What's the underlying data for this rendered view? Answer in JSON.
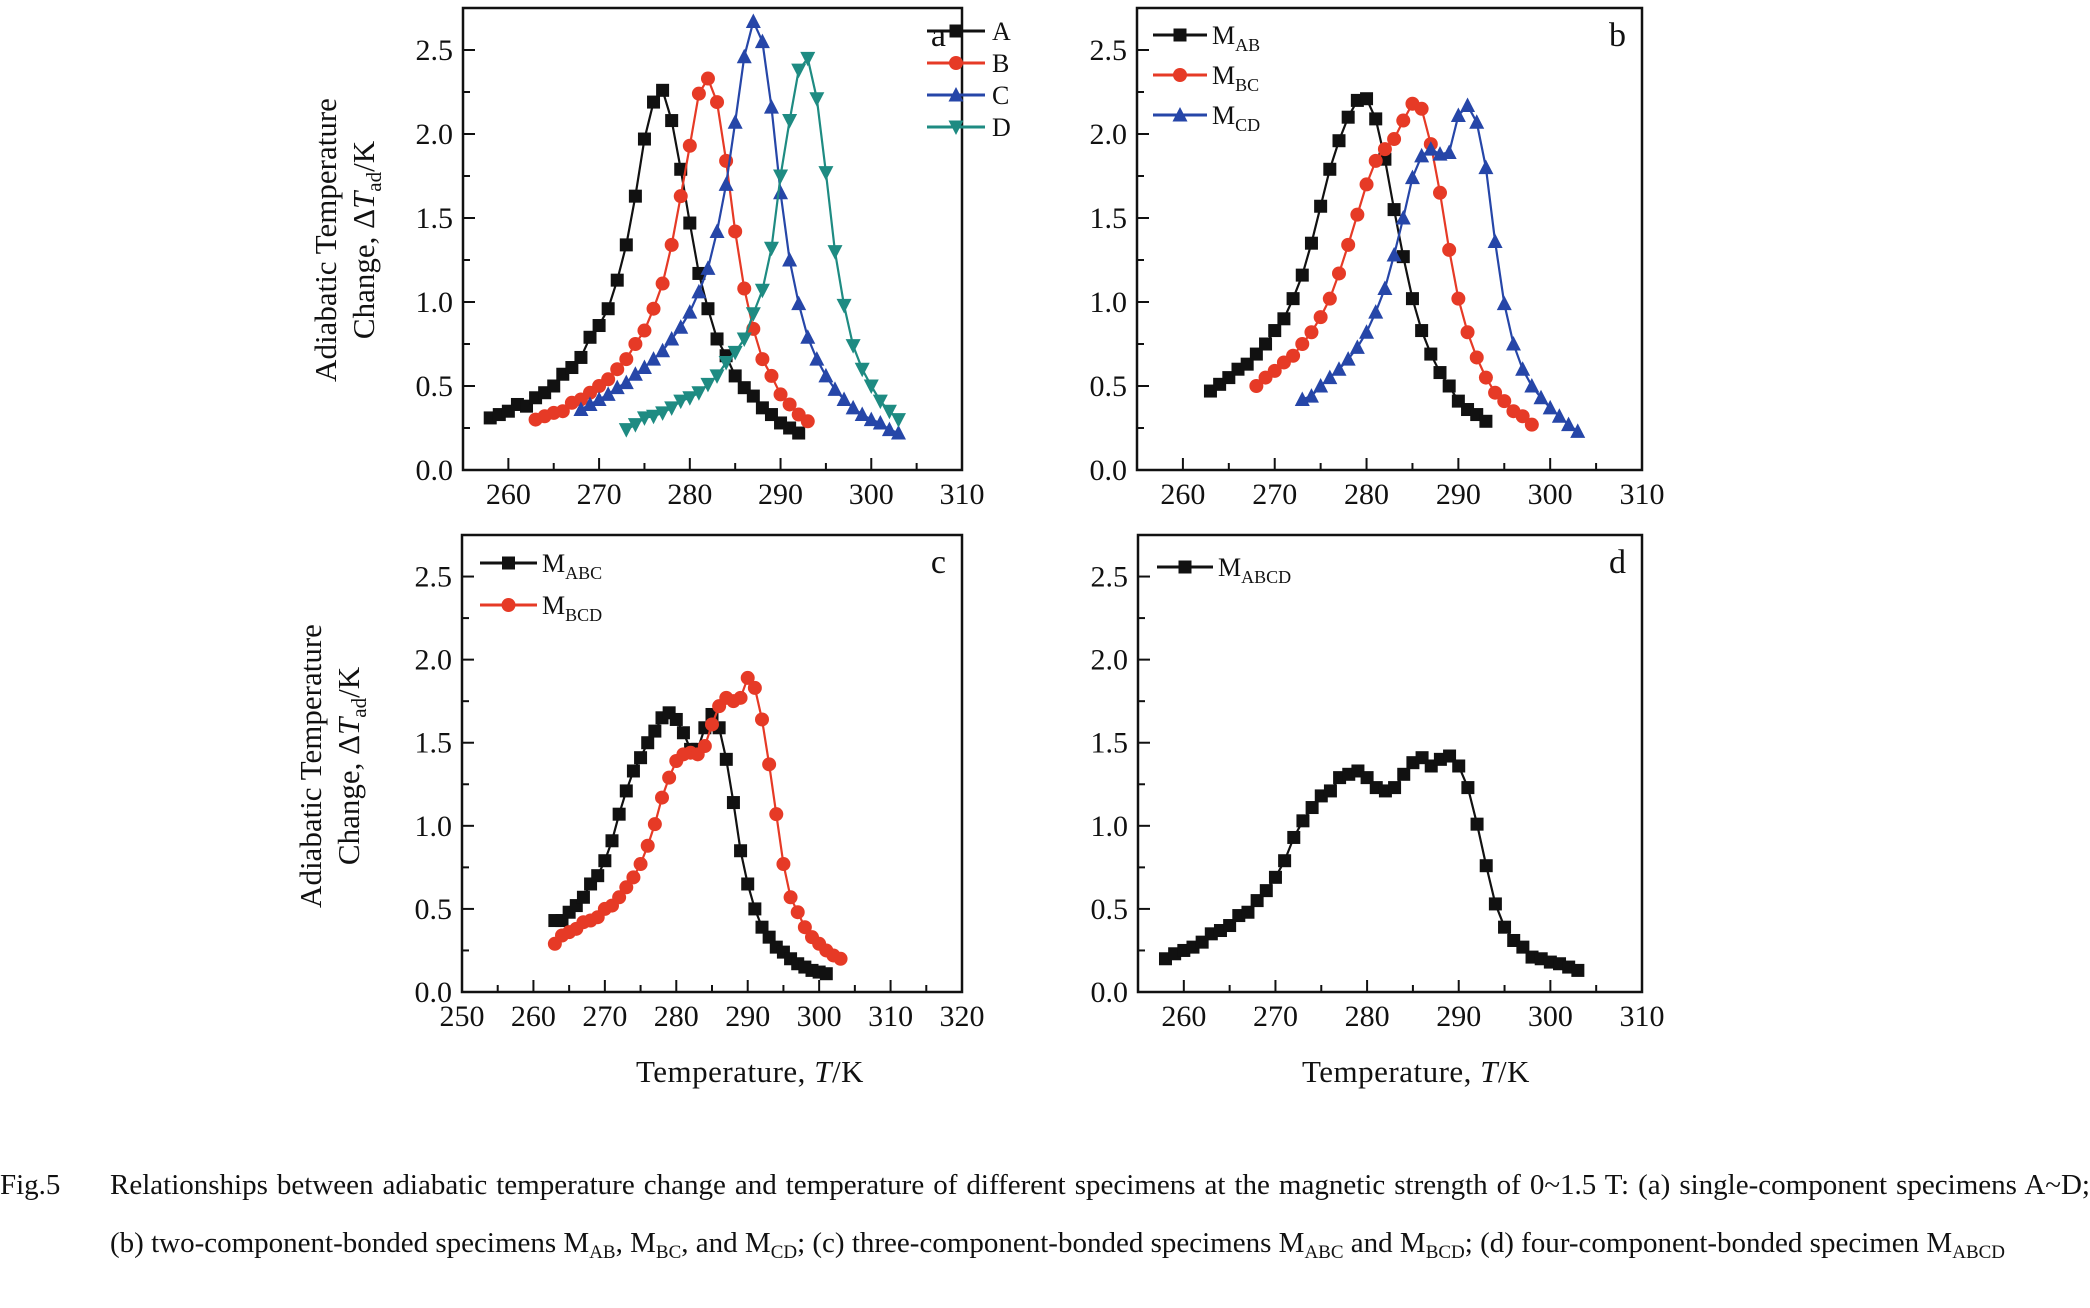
{
  "axis_titles": {
    "y_line1": "Adiabatic Temperature",
    "y_line2_prefix": "Change, Δ",
    "y_line2_var": "T",
    "y_line2_sub": "ad",
    "y_line2_suffix": "/K",
    "x_prefix": "Temperature, ",
    "x_var": "T",
    "x_suffix": "/K"
  },
  "caption": {
    "fig_no": "Fig.5",
    "segments": [
      {
        "t": "Relationships between adiabatic temperature change and temperature of different specimens at the magnetic strength of 0~1.5 T: (a) single-component specimens A~D; (b) two-component-bonded specimens M"
      },
      {
        "t": "AB",
        "sub": true
      },
      {
        "t": ", M"
      },
      {
        "t": "BC",
        "sub": true
      },
      {
        "t": ", and M"
      },
      {
        "t": "CD",
        "sub": true
      },
      {
        "t": "; (c) three-component-bonded specimens M"
      },
      {
        "t": "ABC",
        "sub": true
      },
      {
        "t": " and M"
      },
      {
        "t": "BCD",
        "sub": true
      },
      {
        "t": "; (d) four-component-bonded specimen M"
      },
      {
        "t": "ABCD",
        "sub": true
      }
    ]
  },
  "colors": {
    "black": "#111111",
    "red": "#e63a26",
    "blue": "#2646a8",
    "teal": "#1e8b82"
  },
  "chart_data": [
    {
      "type": "line",
      "panel_label": "a",
      "xlim": [
        255,
        310
      ],
      "ylim": [
        0,
        2.75
      ],
      "xticks": [
        260,
        270,
        280,
        290,
        300,
        310
      ],
      "yticks": [
        "0.0",
        "0.5",
        "1.0",
        "1.5",
        "2.0",
        "2.5"
      ],
      "legend": "top-right",
      "series": [
        {
          "name": "A",
          "sub": "",
          "marker": "square",
          "color": "black",
          "x_start": 258,
          "x_step": 1,
          "y": [
            0.31,
            0.33,
            0.35,
            0.39,
            0.38,
            0.43,
            0.46,
            0.5,
            0.57,
            0.61,
            0.67,
            0.79,
            0.86,
            0.96,
            1.13,
            1.34,
            1.63,
            1.97,
            2.19,
            2.26,
            2.08,
            1.79,
            1.47,
            1.17,
            0.96,
            0.78,
            0.68,
            0.56,
            0.49,
            0.44,
            0.37,
            0.33,
            0.28,
            0.25,
            0.22
          ]
        },
        {
          "name": "B",
          "sub": "",
          "marker": "circle",
          "color": "red",
          "x_start": 263,
          "x_step": 1,
          "y": [
            0.3,
            0.32,
            0.34,
            0.35,
            0.4,
            0.42,
            0.46,
            0.5,
            0.54,
            0.6,
            0.66,
            0.75,
            0.83,
            0.96,
            1.11,
            1.34,
            1.63,
            1.93,
            2.24,
            2.33,
            2.19,
            1.84,
            1.42,
            1.08,
            0.84,
            0.66,
            0.56,
            0.45,
            0.39,
            0.33,
            0.29
          ]
        },
        {
          "name": "C",
          "sub": "",
          "marker": "triangle-up",
          "color": "blue",
          "x_start": 268,
          "x_step": 1,
          "y": [
            0.36,
            0.39,
            0.42,
            0.45,
            0.49,
            0.52,
            0.57,
            0.61,
            0.66,
            0.71,
            0.78,
            0.85,
            0.94,
            1.06,
            1.2,
            1.42,
            1.7,
            2.07,
            2.46,
            2.67,
            2.55,
            2.16,
            1.65,
            1.25,
            0.99,
            0.79,
            0.66,
            0.56,
            0.48,
            0.42,
            0.37,
            0.33,
            0.3,
            0.28,
            0.24,
            0.22
          ]
        },
        {
          "name": "D",
          "sub": "",
          "marker": "triangle-down",
          "color": "teal",
          "x_start": 273,
          "x_step": 1,
          "y": [
            0.24,
            0.27,
            0.31,
            0.32,
            0.34,
            0.37,
            0.41,
            0.43,
            0.46,
            0.51,
            0.56,
            0.64,
            0.7,
            0.78,
            0.93,
            1.07,
            1.32,
            1.75,
            2.08,
            2.38,
            2.45,
            2.21,
            1.77,
            1.3,
            0.98,
            0.74,
            0.6,
            0.5,
            0.41,
            0.35,
            0.3
          ]
        }
      ]
    },
    {
      "type": "line",
      "panel_label": "b",
      "xlim": [
        255,
        310
      ],
      "ylim": [
        0,
        2.75
      ],
      "xticks": [
        260,
        270,
        280,
        290,
        300,
        310
      ],
      "yticks": [
        "0.0",
        "0.5",
        "1.0",
        "1.5",
        "2.0",
        "2.5"
      ],
      "legend": "top-left",
      "series": [
        {
          "name": "M",
          "sub": "AB",
          "marker": "square",
          "color": "black",
          "x_start": 263,
          "x_step": 1,
          "y": [
            0.47,
            0.51,
            0.55,
            0.6,
            0.63,
            0.69,
            0.75,
            0.83,
            0.9,
            1.02,
            1.16,
            1.35,
            1.57,
            1.79,
            1.96,
            2.1,
            2.2,
            2.21,
            2.09,
            1.85,
            1.55,
            1.27,
            1.02,
            0.83,
            0.69,
            0.58,
            0.5,
            0.41,
            0.36,
            0.33,
            0.29
          ]
        },
        {
          "name": "M",
          "sub": "BC",
          "marker": "circle",
          "color": "red",
          "x_start": 268,
          "x_step": 1,
          "y": [
            0.5,
            0.55,
            0.59,
            0.64,
            0.68,
            0.75,
            0.82,
            0.91,
            1.02,
            1.17,
            1.34,
            1.52,
            1.7,
            1.84,
            1.91,
            1.97,
            2.08,
            2.18,
            2.15,
            1.94,
            1.65,
            1.31,
            1.02,
            0.82,
            0.67,
            0.55,
            0.46,
            0.41,
            0.35,
            0.32,
            0.27
          ]
        },
        {
          "name": "M",
          "sub": "CD",
          "marker": "triangle-up",
          "color": "blue",
          "x_start": 273,
          "x_step": 1,
          "y": [
            0.42,
            0.44,
            0.5,
            0.55,
            0.6,
            0.66,
            0.73,
            0.82,
            0.94,
            1.08,
            1.28,
            1.5,
            1.74,
            1.87,
            1.91,
            1.88,
            1.89,
            2.11,
            2.17,
            2.07,
            1.8,
            1.36,
            0.99,
            0.75,
            0.6,
            0.5,
            0.43,
            0.37,
            0.32,
            0.27,
            0.23
          ]
        }
      ]
    },
    {
      "type": "line",
      "panel_label": "c",
      "xlim": [
        250,
        320
      ],
      "ylim": [
        0,
        2.75
      ],
      "xticks": [
        250,
        260,
        270,
        280,
        290,
        300,
        310,
        320
      ],
      "yticks": [
        "0.0",
        "0.5",
        "1.0",
        "1.5",
        "2.0",
        "2.5"
      ],
      "legend": "top-left",
      "series": [
        {
          "name": "M",
          "sub": "ABC",
          "marker": "square",
          "color": "black",
          "x_start": 263,
          "x_step": 1,
          "y": [
            0.43,
            0.43,
            0.48,
            0.52,
            0.57,
            0.65,
            0.7,
            0.79,
            0.91,
            1.07,
            1.21,
            1.33,
            1.41,
            1.5,
            1.57,
            1.65,
            1.68,
            1.64,
            1.56,
            1.46,
            1.46,
            1.59,
            1.67,
            1.59,
            1.4,
            1.14,
            0.85,
            0.65,
            0.5,
            0.39,
            0.33,
            0.27,
            0.24,
            0.2,
            0.17,
            0.15,
            0.13,
            0.12,
            0.11
          ]
        },
        {
          "name": "M",
          "sub": "BCD",
          "marker": "circle",
          "color": "red",
          "x_start": 263,
          "x_step": 1,
          "y": [
            0.29,
            0.34,
            0.36,
            0.38,
            0.42,
            0.43,
            0.45,
            0.5,
            0.52,
            0.57,
            0.63,
            0.69,
            0.77,
            0.88,
            1.01,
            1.17,
            1.29,
            1.39,
            1.43,
            1.44,
            1.43,
            1.48,
            1.61,
            1.72,
            1.77,
            1.75,
            1.77,
            1.89,
            1.83,
            1.64,
            1.37,
            1.07,
            0.77,
            0.57,
            0.48,
            0.39,
            0.33,
            0.29,
            0.25,
            0.22,
            0.2
          ]
        }
      ]
    },
    {
      "type": "line",
      "panel_label": "d",
      "xlim": [
        255,
        310
      ],
      "ylim": [
        0,
        2.75
      ],
      "xticks": [
        260,
        270,
        280,
        290,
        300,
        310
      ],
      "yticks": [
        "0.0",
        "0.5",
        "1.0",
        "1.5",
        "2.0",
        "2.5"
      ],
      "legend": "top-left",
      "series": [
        {
          "name": "M",
          "sub": "ABCD",
          "marker": "square",
          "color": "black",
          "x_start": 258,
          "x_step": 1,
          "y": [
            0.2,
            0.23,
            0.25,
            0.27,
            0.3,
            0.35,
            0.37,
            0.4,
            0.46,
            0.48,
            0.55,
            0.61,
            0.69,
            0.79,
            0.93,
            1.03,
            1.11,
            1.18,
            1.21,
            1.29,
            1.31,
            1.33,
            1.29,
            1.23,
            1.21,
            1.23,
            1.31,
            1.38,
            1.41,
            1.36,
            1.4,
            1.42,
            1.36,
            1.23,
            1.01,
            0.76,
            0.53,
            0.39,
            0.31,
            0.27,
            0.21,
            0.2,
            0.18,
            0.17,
            0.15,
            0.13
          ]
        }
      ]
    }
  ]
}
